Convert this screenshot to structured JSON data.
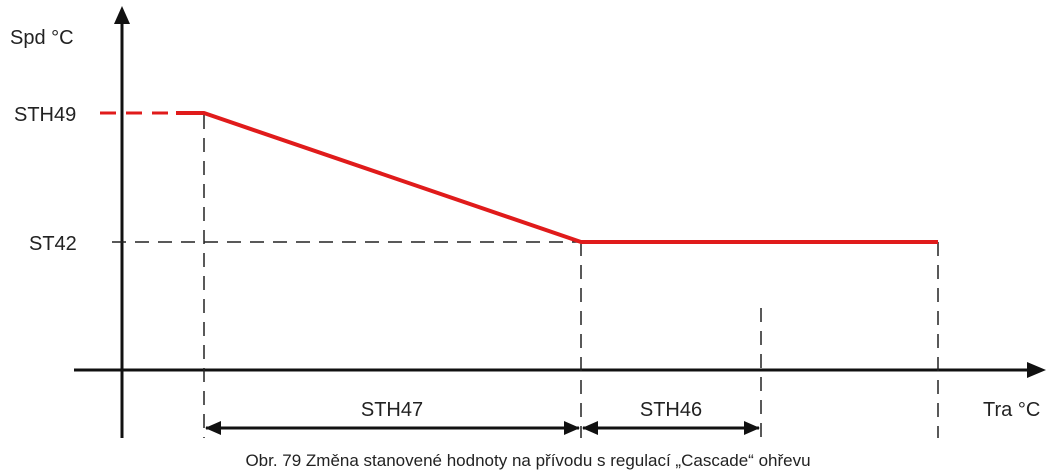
{
  "diagram": {
    "y_axis_label": "Spd °C",
    "x_axis_label": "Tra °C",
    "level_high_label": "STH49",
    "level_low_label": "ST42",
    "span_1_label": "STH47",
    "span_2_label": "STH46",
    "caption": "Obr. 79 Změna stanovené hodnoty na přívodu s regulací „Cascade“ ohřevu",
    "colors": {
      "curve": "#e01b1b",
      "axis": "#111111",
      "guide": "#222222",
      "text": "#222222"
    }
  }
}
